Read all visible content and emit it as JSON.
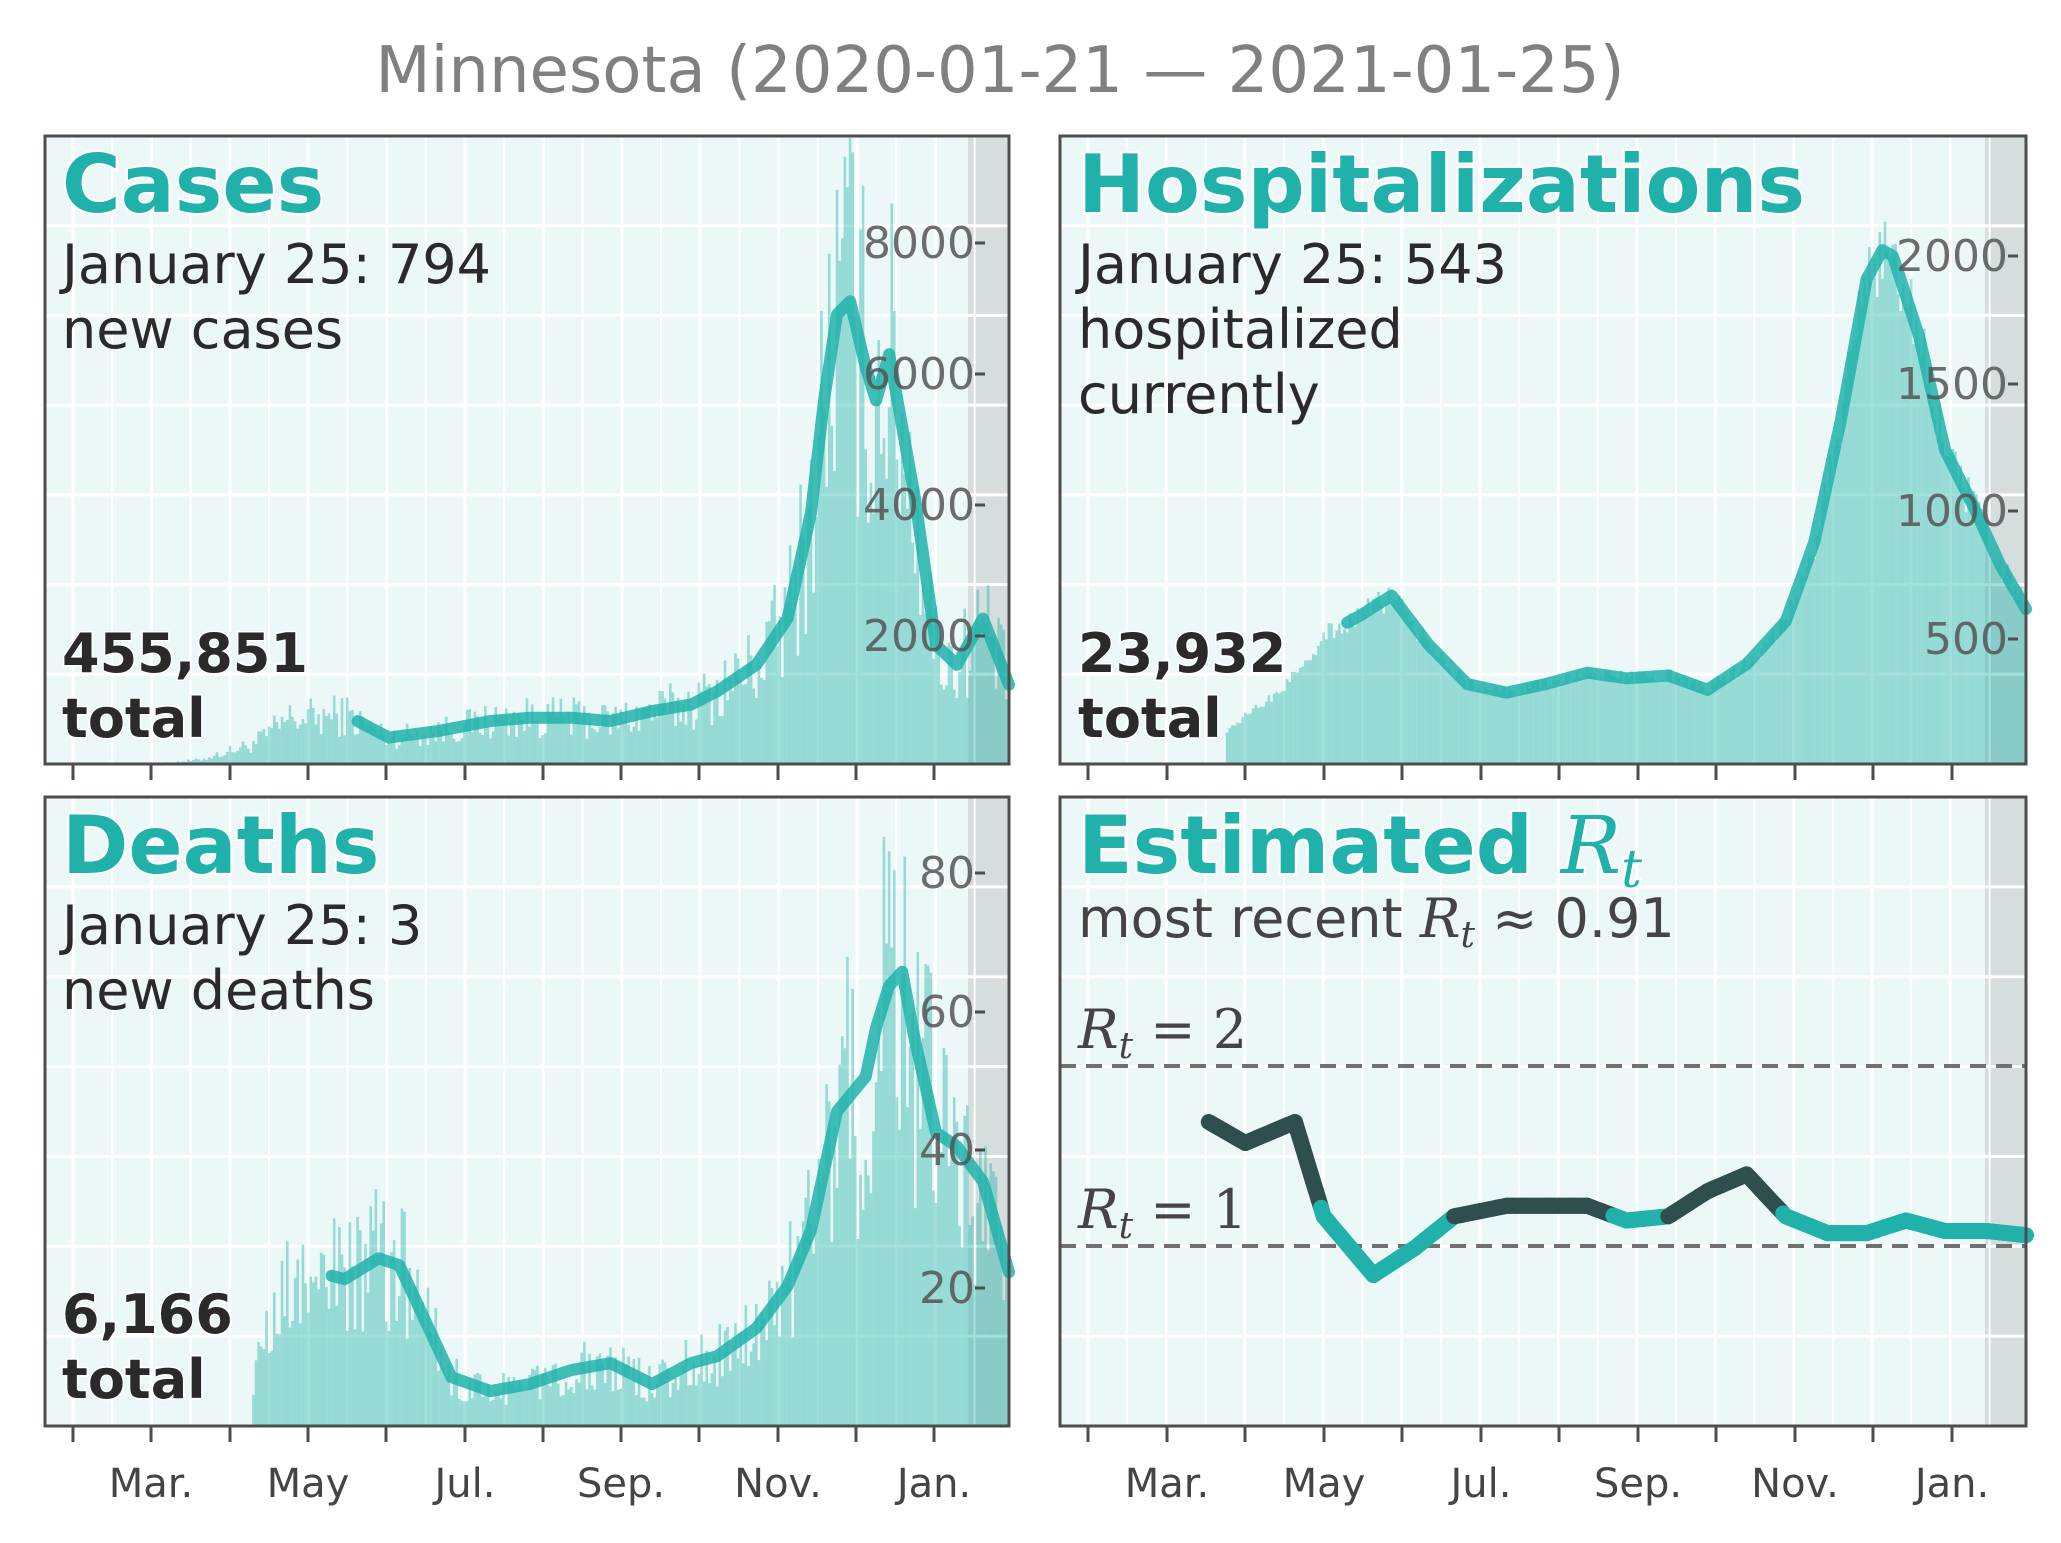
{
  "title": "Minnesota (2020-01-21 — 2021-01-25)",
  "colors": {
    "accent": "#20b2aa",
    "dark": "#2f4f4f",
    "background": "#ecf7f7",
    "shade": "#d5dddd"
  },
  "x_labels": [
    "Mar.",
    "May",
    "Jul.",
    "Sep.",
    "Nov.",
    "Jan."
  ],
  "panels": {
    "cases": {
      "title": "Cases",
      "line1": "January 25: 794",
      "line2": "new cases",
      "total_num": "455,851",
      "total_word": "total",
      "yticks": [
        "2000",
        "4000",
        "6000",
        "8000"
      ]
    },
    "hosp": {
      "title": "Hospitalizations",
      "line1": "January 25: 543",
      "line2": "hospitalized",
      "line3": "currently",
      "total_num": "23,932",
      "total_word": "total",
      "yticks": [
        "500",
        "1000",
        "1500",
        "2000"
      ]
    },
    "deaths": {
      "title": "Deaths",
      "line1": "January 25: 3",
      "line2": "new deaths",
      "total_num": "6,166",
      "total_word": "total",
      "yticks": [
        "20",
        "40",
        "60",
        "80"
      ]
    },
    "rt": {
      "title": "Estimated ",
      "title_R": "R",
      "title_sub": "t",
      "recent_prefix": "most recent ",
      "recent_R": "R",
      "recent_sub": "t",
      "recent_suffix": " ≈ 0.91",
      "ref2_R": "R",
      "ref2_sub": "t",
      "ref2_val": " = 2",
      "ref1_R": "R",
      "ref1_sub": "t",
      "ref1_val": " = 1"
    }
  },
  "chart_data": [
    {
      "panel": "cases",
      "type": "bar+line",
      "title": "Cases",
      "ylim": [
        0,
        9500
      ],
      "x": [
        "2020-01-21",
        "2020-03-05",
        "2020-03-20",
        "2020-04-10",
        "2020-04-25",
        "2020-05-05",
        "2020-05-15",
        "2020-06-01",
        "2020-06-20",
        "2020-07-10",
        "2020-07-25",
        "2020-08-10",
        "2020-08-25",
        "2020-09-10",
        "2020-09-25",
        "2020-10-05",
        "2020-10-20",
        "2020-11-01",
        "2020-11-10",
        "2020-11-15",
        "2020-11-20",
        "2020-11-25",
        "2020-12-01",
        "2020-12-05",
        "2020-12-10",
        "2020-12-20",
        "2020-12-28",
        "2021-01-05",
        "2021-01-15",
        "2021-01-25"
      ],
      "y": [
        0,
        10,
        60,
        300,
        700,
        700,
        750,
        400,
        500,
        650,
        700,
        700,
        650,
        800,
        900,
        1100,
        1500,
        2200,
        3800,
        5500,
        6800,
        7000,
        6000,
        5500,
        6200,
        4000,
        1800,
        1500,
        2200,
        1200
      ]
    },
    {
      "panel": "hospitalizations",
      "type": "bar+line",
      "title": "Hospitalizations",
      "ylim": [
        0,
        2200
      ],
      "x": [
        "2020-01-21",
        "2020-03-10",
        "2020-03-25",
        "2020-04-15",
        "2020-05-01",
        "2020-05-15",
        "2020-05-27",
        "2020-06-10",
        "2020-06-25",
        "2020-07-10",
        "2020-07-25",
        "2020-08-10",
        "2020-08-25",
        "2020-09-10",
        "2020-09-25",
        "2020-10-10",
        "2020-10-25",
        "2020-11-05",
        "2020-11-15",
        "2020-11-25",
        "2020-12-01",
        "2020-12-05",
        "2020-12-15",
        "2020-12-25",
        "2021-01-05",
        "2021-01-15",
        "2021-01-25"
      ],
      "y": [
        0,
        0,
        120,
        260,
        450,
        520,
        590,
        420,
        280,
        250,
        280,
        320,
        300,
        310,
        260,
        350,
        500,
        780,
        1200,
        1700,
        1800,
        1780,
        1500,
        1100,
        900,
        700,
        543
      ]
    },
    {
      "panel": "deaths",
      "type": "bar+line",
      "title": "Deaths",
      "ylim": [
        0,
        90
      ],
      "x": [
        "2020-01-21",
        "2020-03-20",
        "2020-04-10",
        "2020-04-25",
        "2020-05-05",
        "2020-05-15",
        "2020-05-28",
        "2020-06-05",
        "2020-06-15",
        "2020-06-25",
        "2020-07-10",
        "2020-07-25",
        "2020-08-10",
        "2020-08-25",
        "2020-09-10",
        "2020-09-25",
        "2020-10-05",
        "2020-10-20",
        "2020-11-01",
        "2020-11-10",
        "2020-11-20",
        "2020-12-01",
        "2020-12-05",
        "2020-12-10",
        "2020-12-15",
        "2020-12-20",
        "2020-12-28",
        "2021-01-05",
        "2021-01-15",
        "2021-01-25"
      ],
      "y": [
        0,
        0,
        8,
        20,
        22,
        21,
        24,
        23,
        15,
        7,
        5,
        6,
        8,
        9,
        6,
        9,
        10,
        14,
        20,
        28,
        45,
        50,
        57,
        63,
        65,
        55,
        42,
        40,
        35,
        22
      ]
    },
    {
      "panel": "rt",
      "type": "line",
      "title": "Estimated Rt",
      "ylim": [
        0,
        3
      ],
      "x": [
        "2020-03-18",
        "2020-04-01",
        "2020-04-20",
        "2020-05-01",
        "2020-05-20",
        "2020-06-05",
        "2020-06-20",
        "2020-07-10",
        "2020-07-25",
        "2020-08-10",
        "2020-08-25",
        "2020-09-10",
        "2020-09-25",
        "2020-10-10",
        "2020-10-25",
        "2020-11-10",
        "2020-11-25",
        "2020-12-10",
        "2020-12-25",
        "2021-01-10",
        "2021-01-25"
      ],
      "y": [
        1.45,
        1.35,
        1.45,
        1.0,
        0.72,
        0.85,
        1.0,
        1.05,
        1.05,
        1.05,
        0.98,
        1.0,
        1.12,
        1.2,
        1.0,
        0.92,
        0.92,
        0.98,
        0.93,
        0.93,
        0.91
      ],
      "reference_lines": [
        1,
        2
      ]
    }
  ]
}
